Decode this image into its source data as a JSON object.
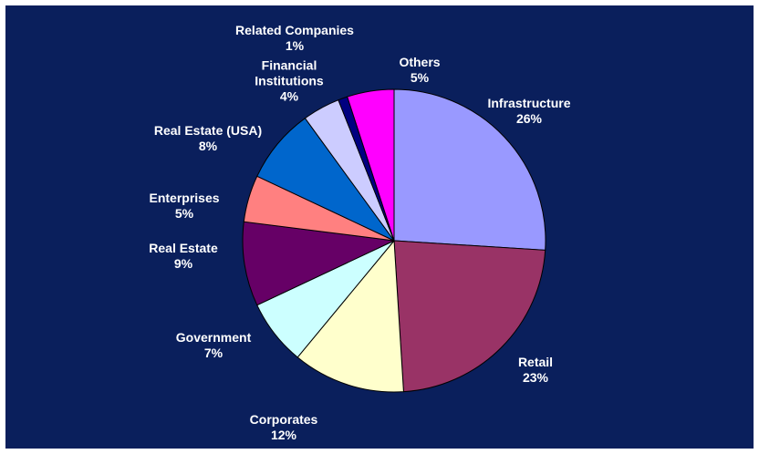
{
  "chart_data": {
    "type": "pie",
    "start_angle_deg": 0,
    "direction": "clockwise",
    "slices": [
      {
        "label": "Infrastructure",
        "value": 26,
        "value_label": "26%",
        "color": "#9999ff"
      },
      {
        "label": "Retail",
        "value": 23,
        "value_label": "23%",
        "color": "#993366"
      },
      {
        "label": "Corporates",
        "value": 12,
        "value_label": "12%",
        "color": "#ffffcc"
      },
      {
        "label": "Government",
        "value": 7,
        "value_label": "7%",
        "color": "#ccffff"
      },
      {
        "label": "Real Estate",
        "value": 9,
        "value_label": "9%",
        "color": "#660066"
      },
      {
        "label": "Enterprises",
        "value": 5,
        "value_label": "5%",
        "color": "#ff8080"
      },
      {
        "label": "Real Estate (USA)",
        "value": 8,
        "value_label": "8%",
        "color": "#0066cc"
      },
      {
        "label": "Financial\nInstitutions",
        "value": 4,
        "value_label": "4%",
        "color": "#ccccff"
      },
      {
        "label": "Related Companies",
        "value": 1,
        "value_label": "1%",
        "color": "#000080"
      },
      {
        "label": "Others",
        "value": 5,
        "value_label": "5%",
        "color": "#ff00ff"
      }
    ],
    "background_color": "#0a1f5c",
    "label_color": "#ffffff"
  }
}
